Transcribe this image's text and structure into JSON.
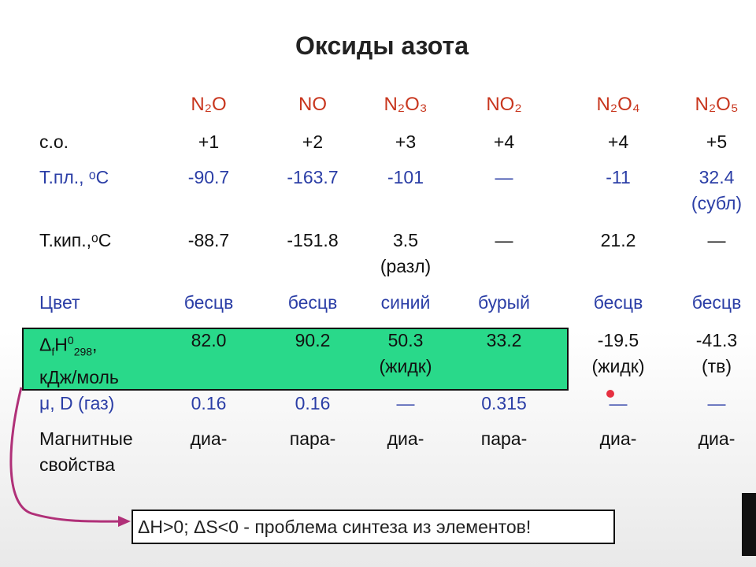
{
  "title": "Оксиды азота",
  "columns": [
    "N₂O",
    "NO",
    "N₂O₃",
    "NO₂",
    "N₂O₄",
    "N₂O₅"
  ],
  "rows": [
    {
      "color": "#111111",
      "label": [
        "с.о."
      ],
      "cells": [
        [
          "+1"
        ],
        [
          "+2"
        ],
        [
          "+3"
        ],
        [
          "+4"
        ],
        [
          "+4"
        ],
        [
          "+5"
        ]
      ]
    },
    {
      "color": "#2b3ea6",
      "label": [
        "Т.пл., ᵒС"
      ],
      "cells": [
        [
          "-90.7"
        ],
        [
          "-163.7"
        ],
        [
          "-101"
        ],
        [
          "—"
        ],
        [
          "-11"
        ],
        [
          "32.4",
          "(субл)"
        ]
      ]
    },
    {
      "color": "#111111",
      "label": [
        "Т.кип.,ᵒС"
      ],
      "cells": [
        [
          "-88.7"
        ],
        [
          "-151.8"
        ],
        [
          "3.5",
          "(разл)"
        ],
        [
          "—"
        ],
        [
          "21.2"
        ],
        [
          "—"
        ]
      ]
    },
    {
      "color": "#2b3ea6",
      "label": [
        "Цвет"
      ],
      "cells": [
        [
          "бесцв"
        ],
        [
          "бесцв"
        ],
        [
          "синий"
        ],
        [
          "бурый"
        ],
        [
          "бесцв"
        ],
        [
          "бесцв"
        ]
      ]
    },
    {
      "color": "#111111",
      "label": [
        [
          "Δ",
          {
            "sub": "f"
          },
          "H",
          {
            "sup": "0"
          },
          {
            "sub": "298"
          },
          ","
        ],
        "кДж/моль"
      ],
      "cells": [
        [
          "82.0"
        ],
        [
          "90.2"
        ],
        [
          "50.3",
          "(жидк)"
        ],
        [
          "33.2"
        ],
        [
          "-19.5",
          "(жидк)"
        ],
        [
          "-41.3",
          "(тв)"
        ]
      ]
    },
    {
      "color": "#2b3ea6",
      "label": [
        "μ, D (газ)"
      ],
      "cells": [
        [
          "0.16"
        ],
        [
          "0.16"
        ],
        [
          "—"
        ],
        [
          "0.315"
        ],
        [
          "—"
        ],
        [
          "—"
        ]
      ]
    },
    {
      "color": "#111111",
      "label": [
        "Магнитные",
        "свойства"
      ],
      "cells": [
        [
          "диа-"
        ],
        [
          "пара-"
        ],
        [
          "диа-"
        ],
        [
          "пара-"
        ],
        [
          "диа-"
        ],
        [
          "диа-"
        ]
      ]
    }
  ],
  "footnote": "ΔH>0; ΔS<0 - проблема синтеза из элементов!"
}
